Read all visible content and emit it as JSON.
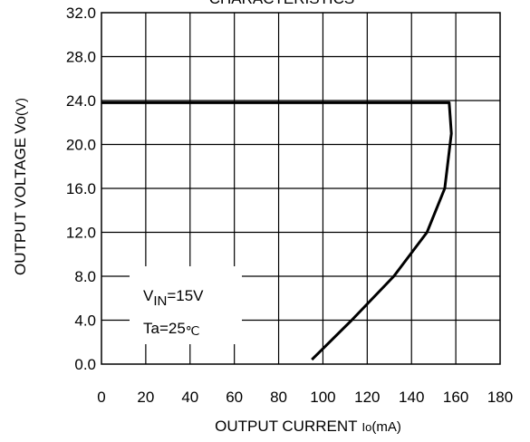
{
  "chart_data": {
    "type": "line",
    "title": "CHARACTERISTICS",
    "xlabel": "OUTPUT CURRENT",
    "xlabel_symbol": "Io",
    "xlabel_unit": "(mA)",
    "ylabel": "OUTPUT VOLTAGE",
    "ylabel_symbol": "Vo",
    "ylabel_unit": "(V)",
    "xlim": [
      0,
      180
    ],
    "ylim": [
      0,
      32
    ],
    "x_ticks": [
      "0",
      "20",
      "40",
      "60",
      "80",
      "100",
      "120",
      "140",
      "160",
      "180"
    ],
    "y_ticks": [
      "0.0",
      "4.0",
      "8.0",
      "12.0",
      "16.0",
      "20.0",
      "24.0",
      "28.0",
      "32.0"
    ],
    "grid": true,
    "series": [
      {
        "x": [
          0,
          157,
          158,
          155,
          147,
          132,
          113,
          95
        ],
        "y": [
          23.8,
          23.8,
          21,
          16,
          12,
          8,
          4,
          0.4
        ]
      }
    ],
    "annotations": {
      "vin_main": "V",
      "vin_sub": "IN",
      "vin_value": "=15V",
      "ta": "Ta=25",
      "ta_unit": "℃"
    }
  }
}
